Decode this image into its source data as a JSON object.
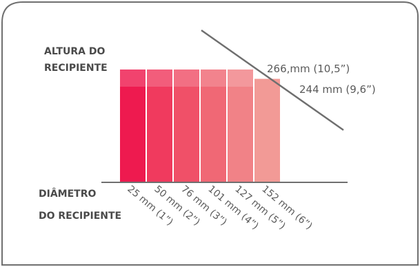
{
  "labels": {
    "height_line1": "ALTURA DO",
    "height_line2": "RECIPIENTE",
    "diameter_line1": "DIÂMETRO",
    "diameter_line2": "DO RECIPIENTE",
    "max_height": "266,mm (10,5”)",
    "min_height": "244 mm (9,6”)"
  },
  "colors": {
    "border": "#6f6f6f",
    "axis": "#6f6f6f",
    "bars": [
      "#ee1a4f",
      "#f03a5e",
      "#f05068",
      "#f06875",
      "#f18287",
      "#f29a96"
    ]
  },
  "chart_data": {
    "type": "bar",
    "categories": [
      "25 mm (1”)",
      "50 mm (2”)",
      "76 mm (3”)",
      "101 mm (4”)",
      "127 mm (5”)",
      "152 mm (6”)"
    ],
    "values": [
      266,
      266,
      266,
      266,
      266,
      244
    ]
  }
}
